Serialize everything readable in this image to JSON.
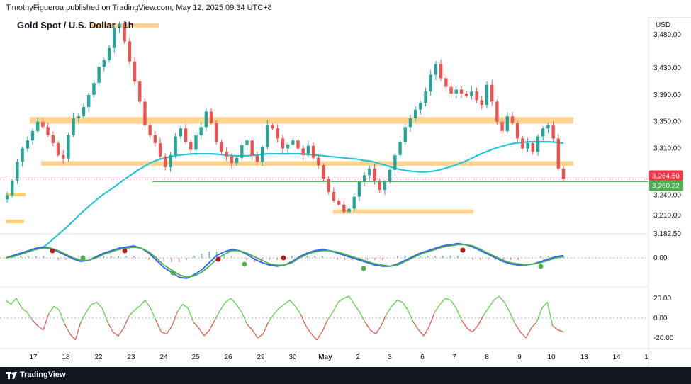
{
  "header": {
    "publish_text": "TimothyFigueroa published on TradingView.com, May 12, 2025 09:34 UTC+8"
  },
  "footer": {
    "brand": "TradingView"
  },
  "chart_data": [
    {
      "type": "candlestick",
      "title": "Gold Spot / U.S. Dollar . 1h",
      "currency": "USD",
      "y_ticks": [
        3480,
        3430,
        3390,
        3350,
        3310,
        3240,
        3210,
        3182.5
      ],
      "y_tick_labels": [
        "3,480.00",
        "3,430.00",
        "3,390.00",
        "3,350.00",
        "3,310.00",
        "3,240.00",
        "3,210.00",
        "3,182.50"
      ],
      "ylim": [
        3182.5,
        3500
      ],
      "x_tick_labels": [
        "17",
        "18",
        "22",
        "23",
        "24",
        "25",
        "26",
        "29",
        "30",
        "May",
        "2",
        "3",
        "6",
        "7",
        "8",
        "9",
        "10",
        "13",
        "14",
        "1"
      ],
      "price_labels": [
        {
          "text": "3,264.50",
          "value": 3264.5,
          "color": "#f23645"
        },
        {
          "text": "3,260.22",
          "value": 3260.22,
          "color": "#4caf50"
        }
      ],
      "zones": [
        {
          "name": "resistance-top",
          "y_low": 3493,
          "y_high": 3497,
          "x_from": "Apr 22",
          "x_to": "Apr 23"
        },
        {
          "name": "resistance-1",
          "y_low": 3347,
          "y_high": 3357,
          "x_from": "Apr 17",
          "x_to": "May 10"
        },
        {
          "name": "support-1",
          "y_low": 3284,
          "y_high": 3291,
          "x_from": "Apr 17",
          "x_to": "May 10"
        },
        {
          "name": "support-2",
          "y_low": 3213,
          "y_high": 3219,
          "x_from": "May 2",
          "x_to": "May 7"
        }
      ],
      "close_series": [
        3240,
        3262,
        3290,
        3310,
        3322,
        3336,
        3350,
        3342,
        3330,
        3318,
        3300,
        3295,
        3330,
        3355,
        3358,
        3372,
        3390,
        3408,
        3432,
        3442,
        3460,
        3490,
        3496,
        3470,
        3440,
        3410,
        3380,
        3345,
        3330,
        3318,
        3298,
        3282,
        3300,
        3328,
        3340,
        3320,
        3308,
        3330,
        3342,
        3365,
        3348,
        3320,
        3305,
        3298,
        3288,
        3296,
        3315,
        3322,
        3300,
        3290,
        3312,
        3345,
        3340,
        3325,
        3310,
        3316,
        3322,
        3310,
        3300,
        3314,
        3296,
        3285,
        3265,
        3245,
        3232,
        3226,
        3215,
        3220,
        3238,
        3260,
        3270,
        3280,
        3262,
        3248,
        3260,
        3278,
        3300,
        3320,
        3342,
        3355,
        3368,
        3378,
        3395,
        3420,
        3436,
        3415,
        3402,
        3392,
        3398,
        3392,
        3388,
        3395,
        3382,
        3375,
        3405,
        3380,
        3350,
        3336,
        3358,
        3348,
        3325,
        3310,
        3318,
        3305,
        3328,
        3340,
        3345,
        3325,
        3280,
        3264.5
      ],
      "ma_series": [
        3160,
        3168,
        3177,
        3186,
        3195,
        3205,
        3215,
        3224,
        3233,
        3241,
        3248,
        3255,
        3263,
        3270,
        3277,
        3283,
        3289,
        3293,
        3296,
        3298,
        3300,
        3301,
        3302,
        3302,
        3302,
        3302,
        3301,
        3300,
        3299,
        3299,
        3299,
        3300,
        3301,
        3302,
        3302,
        3302,
        3302,
        3302,
        3302,
        3301,
        3300,
        3299,
        3298,
        3297,
        3296,
        3295,
        3294,
        3292,
        3291,
        3288,
        3285,
        3282,
        3279,
        3277,
        3276,
        3275,
        3275,
        3276,
        3278,
        3281,
        3284,
        3288,
        3292,
        3297,
        3302,
        3306,
        3310,
        3313,
        3316,
        3318,
        3319,
        3320,
        3320,
        3320,
        3320,
        3319,
        3318
      ],
      "ma_color": "#26c6da",
      "bull_color": "#26a69a",
      "bear_color": "#ef5350"
    },
    {
      "type": "line",
      "name": "momentum-oscillator",
      "y_tick_labels": [
        "0.00"
      ],
      "series": [
        {
          "name": "fast",
          "color": "#2962ff",
          "values": [
            0,
            2,
            4,
            6,
            8,
            9,
            8,
            5,
            2,
            -1,
            -3,
            -2,
            1,
            4,
            6,
            8,
            9,
            10,
            8,
            4,
            -2,
            -8,
            -12,
            -16,
            -17,
            -14,
            -10,
            -4,
            2,
            5,
            7,
            6,
            3,
            -1,
            -4,
            -6,
            -7,
            -6,
            -3,
            1,
            4,
            6,
            7,
            6,
            4,
            2,
            0,
            -2,
            -4,
            -6,
            -7,
            -7,
            -5,
            -2,
            1,
            4,
            6,
            8,
            10,
            11,
            12,
            11,
            9,
            6,
            3,
            0,
            -3,
            -5,
            -6,
            -6,
            -5,
            -3,
            -1,
            1,
            2
          ]
        },
        {
          "name": "slow",
          "color": "#4caf50",
          "values": [
            0,
            1,
            3,
            5,
            7,
            8,
            8,
            6,
            3,
            0,
            -2,
            -2,
            0,
            3,
            5,
            7,
            8,
            9,
            8,
            5,
            0,
            -6,
            -10,
            -14,
            -16,
            -15,
            -12,
            -7,
            -1,
            3,
            6,
            6,
            4,
            1,
            -2,
            -5,
            -6,
            -6,
            -4,
            0,
            3,
            5,
            6,
            6,
            5,
            3,
            1,
            -1,
            -3,
            -5,
            -6,
            -7,
            -6,
            -3,
            0,
            3,
            5,
            7,
            9,
            10,
            11,
            11,
            10,
            7,
            4,
            1,
            -2,
            -4,
            -5,
            -6,
            -5,
            -4,
            -2,
            0,
            1
          ]
        }
      ],
      "histogram": [
        0,
        1,
        1,
        1,
        1,
        1,
        0,
        -1,
        -1,
        -1,
        -1,
        0,
        1,
        1,
        1,
        1,
        1,
        1,
        0,
        -1,
        -2,
        -2,
        -2,
        -2,
        -1,
        1,
        2,
        3,
        3,
        2,
        1,
        0,
        -1,
        -2,
        -2,
        -1,
        -1,
        0,
        1,
        1,
        1,
        1,
        1,
        0,
        -1,
        -1,
        -1,
        -1,
        -1,
        -1,
        -1,
        0,
        1,
        1,
        1,
        1,
        1,
        1,
        1,
        1,
        1,
        0,
        -1,
        -1,
        -1,
        -1,
        -1,
        -1,
        -1,
        0,
        0,
        1,
        1,
        1,
        1
      ]
    },
    {
      "type": "line",
      "name": "oscillator",
      "y_tick_labels": [
        "20.00",
        "0.00",
        "-20.00"
      ],
      "ylim": [
        -30,
        30
      ],
      "values": [
        18,
        14,
        20,
        10,
        6,
        -2,
        -8,
        -12,
        4,
        12,
        8,
        -6,
        -16,
        -22,
        -4,
        6,
        14,
        16,
        10,
        -4,
        -14,
        -18,
        -10,
        2,
        8,
        12,
        18,
        10,
        -2,
        -14,
        -16,
        -8,
        6,
        14,
        10,
        -4,
        -10,
        -18,
        -12,
        -2,
        8,
        16,
        20,
        14,
        6,
        -6,
        -12,
        -20,
        -16,
        -4,
        4,
        10,
        14,
        18,
        12,
        4,
        -8,
        -16,
        -22,
        -14,
        -2,
        6,
        16,
        20,
        22,
        14,
        6,
        -4,
        -12,
        -16,
        -8,
        4,
        12,
        18,
        16,
        8,
        -4,
        -12,
        -18,
        -8,
        6,
        14,
        20,
        18,
        10,
        -2,
        -10,
        -14,
        -8,
        2,
        10,
        18,
        22,
        16,
        6,
        -6,
        -14,
        -20,
        -10,
        -4,
        10,
        16,
        -8,
        -12,
        -14
      ],
      "up_color": "#4cd137",
      "down_color": "#e84c3d"
    }
  ]
}
